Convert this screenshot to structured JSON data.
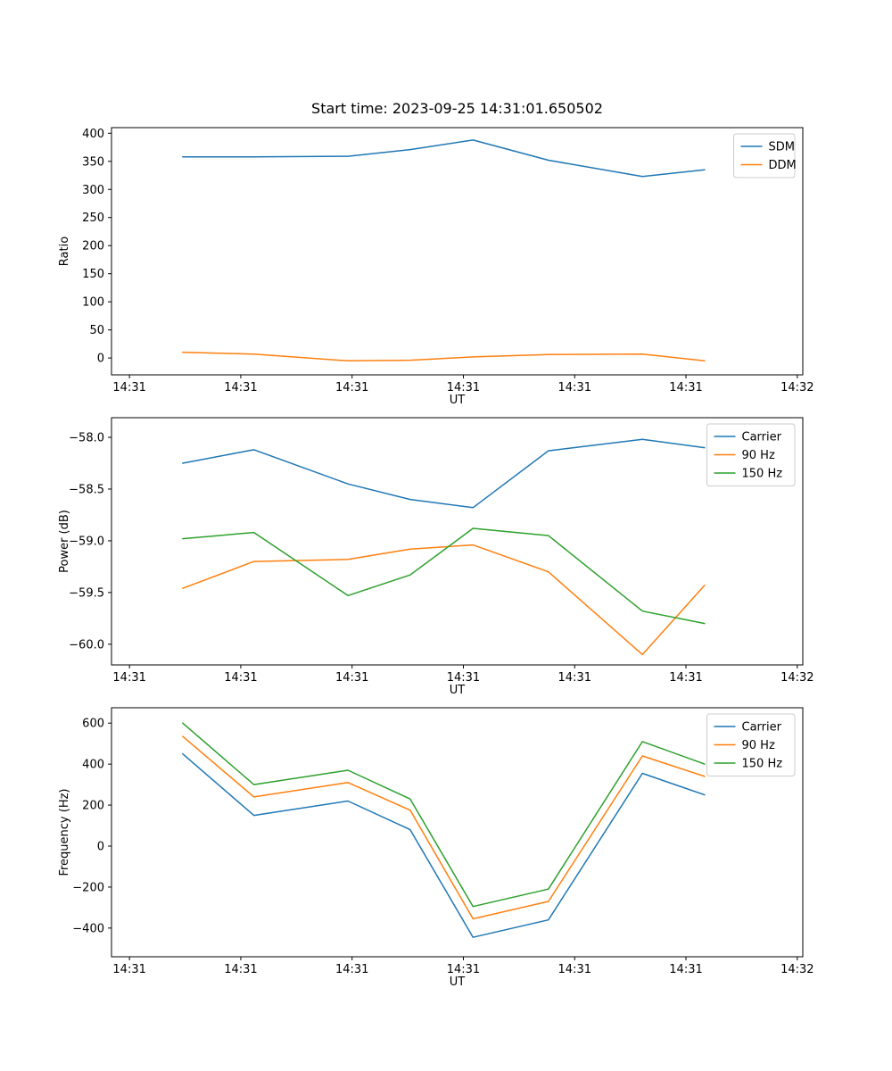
{
  "colors": {
    "blue": "#1f77b4",
    "orange": "#ff7f0e",
    "green": "#2ca02c"
  },
  "chart_data": [
    {
      "type": "line",
      "title": "Start time: 2023-09-25 14:31:01.650502",
      "xlabel": "UT",
      "ylabel": "Ratio",
      "ylim": [
        -30,
        410
      ],
      "yticks": [
        0,
        50,
        100,
        150,
        200,
        250,
        300,
        350,
        400
      ],
      "ytick_labels": [
        "0",
        "50",
        "100",
        "150",
        "200",
        "250",
        "300",
        "350",
        "400"
      ],
      "xtick_pos": [
        0.026,
        0.187,
        0.348,
        0.509,
        0.67,
        0.831,
        0.992
      ],
      "xtick_labels": [
        "14:31",
        "14:31",
        "14:31",
        "14:31",
        "14:31",
        "14:31",
        "14:32"
      ],
      "x": [
        0.103,
        0.206,
        0.342,
        0.432,
        0.523,
        0.632,
        0.768,
        0.858
      ],
      "series": [
        {
          "name": "SDM",
          "color": "#1f77b4",
          "values": [
            358,
            358,
            359,
            371,
            388,
            352,
            323,
            335
          ]
        },
        {
          "name": "DDM",
          "color": "#ff7f0e",
          "values": [
            10,
            7,
            -5,
            -4,
            2,
            6,
            7,
            -5
          ]
        }
      ],
      "legend": [
        "SDM",
        "DDM"
      ],
      "legend_position": "upper right",
      "grid": false
    },
    {
      "type": "line",
      "title": "",
      "xlabel": "UT",
      "ylabel": "Power (dB)",
      "ylim": [
        -60.2,
        -57.81
      ],
      "yticks": [
        -58.0,
        -58.5,
        -59.0,
        -59.5,
        -60.0
      ],
      "ytick_labels": [
        "−58.0",
        "−58.5",
        "−59.0",
        "−59.5",
        "−60.0"
      ],
      "xtick_pos": [
        0.026,
        0.187,
        0.348,
        0.509,
        0.67,
        0.831,
        0.992
      ],
      "xtick_labels": [
        "14:31",
        "14:31",
        "14:31",
        "14:31",
        "14:31",
        "14:31",
        "14:32"
      ],
      "x": [
        0.103,
        0.206,
        0.342,
        0.432,
        0.523,
        0.632,
        0.768,
        0.858
      ],
      "series": [
        {
          "name": "Carrier",
          "color": "#1f77b4",
          "values": [
            -58.25,
            -58.12,
            -58.45,
            -58.6,
            -58.68,
            -58.13,
            -58.02,
            -58.1
          ]
        },
        {
          "name": "90 Hz",
          "color": "#ff7f0e",
          "values": [
            -59.46,
            -59.2,
            -59.18,
            -59.08,
            -59.04,
            -59.3,
            -60.1,
            -59.43
          ]
        },
        {
          "name": "150 Hz",
          "color": "#2ca02c",
          "values": [
            -58.98,
            -58.92,
            -59.53,
            -59.33,
            -58.88,
            -58.95,
            -59.68,
            -59.8
          ]
        }
      ],
      "legend": [
        "Carrier",
        "90 Hz",
        "150 Hz"
      ],
      "legend_position": "upper right",
      "grid": false
    },
    {
      "type": "line",
      "title": "",
      "xlabel": "UT",
      "ylabel": "Frequency (Hz)",
      "ylim": [
        -540,
        675
      ],
      "yticks": [
        -400,
        -200,
        0,
        200,
        400,
        600
      ],
      "ytick_labels": [
        "−400",
        "−200",
        "0",
        "200",
        "400",
        "600"
      ],
      "xtick_pos": [
        0.026,
        0.187,
        0.348,
        0.509,
        0.67,
        0.831,
        0.992
      ],
      "xtick_labels": [
        "14:31",
        "14:31",
        "14:31",
        "14:31",
        "14:31",
        "14:31",
        "14:32"
      ],
      "x": [
        0.103,
        0.206,
        0.342,
        0.432,
        0.523,
        0.632,
        0.768,
        0.858
      ],
      "series": [
        {
          "name": "Carrier",
          "color": "#1f77b4",
          "values": [
            450,
            150,
            220,
            80,
            -445,
            -360,
            355,
            250
          ]
        },
        {
          "name": "90 Hz",
          "color": "#ff7f0e",
          "values": [
            535,
            240,
            310,
            175,
            -355,
            -270,
            440,
            340
          ]
        },
        {
          "name": "150 Hz",
          "color": "#2ca02c",
          "values": [
            600,
            300,
            370,
            230,
            -295,
            -210,
            510,
            400
          ]
        }
      ],
      "legend": [
        "Carrier",
        "90 Hz",
        "150 Hz"
      ],
      "legend_position": "upper right",
      "grid": false
    }
  ]
}
